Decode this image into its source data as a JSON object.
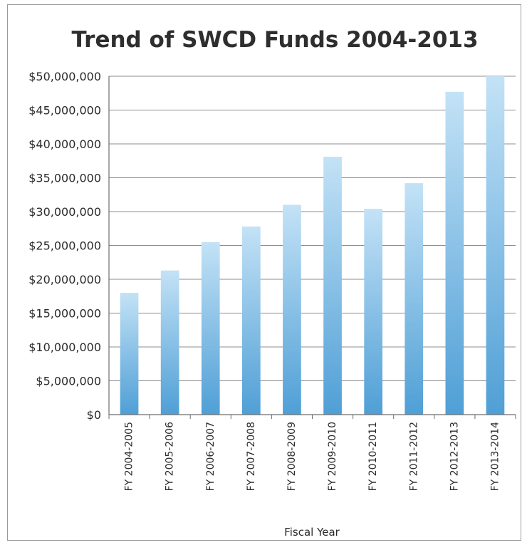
{
  "chart_data": {
    "type": "bar",
    "title": "Trend of SWCD Funds 2004-2013",
    "xlabel": "Fiscal Year",
    "ylabel": "",
    "categories": [
      "FY 2004-2005",
      "FY 2005-2006",
      "FY 2006-2007",
      "FY 2007-2008",
      "FY 2008-2009",
      "FY 2009-2010",
      "FY 2010-2011",
      "FY 2011-2012",
      "FY 2012-2013",
      "FY 2013-2014"
    ],
    "values": [
      18000000,
      21300000,
      25500000,
      27800000,
      31000000,
      38100000,
      30400000,
      34200000,
      47700000,
      50000000
    ],
    "ylim": [
      0,
      50000000
    ],
    "yticks": [
      0,
      5000000,
      10000000,
      15000000,
      20000000,
      25000000,
      30000000,
      35000000,
      40000000,
      45000000,
      50000000
    ],
    "ytick_labels": [
      "$0",
      "$5,000,000",
      "$10,000,000",
      "$15,000,000",
      "$20,000,000",
      "$25,000,000",
      "$30,000,000",
      "$35,000,000",
      "$40,000,000",
      "$45,000,000",
      "$50,000,000"
    ],
    "grid": true,
    "legend": "none",
    "colors": {
      "bar_top": "#c3e2f6",
      "bar_bottom": "#4f9fd6",
      "grid": "#8c8c8c",
      "axis": "#6e6e6e"
    }
  }
}
